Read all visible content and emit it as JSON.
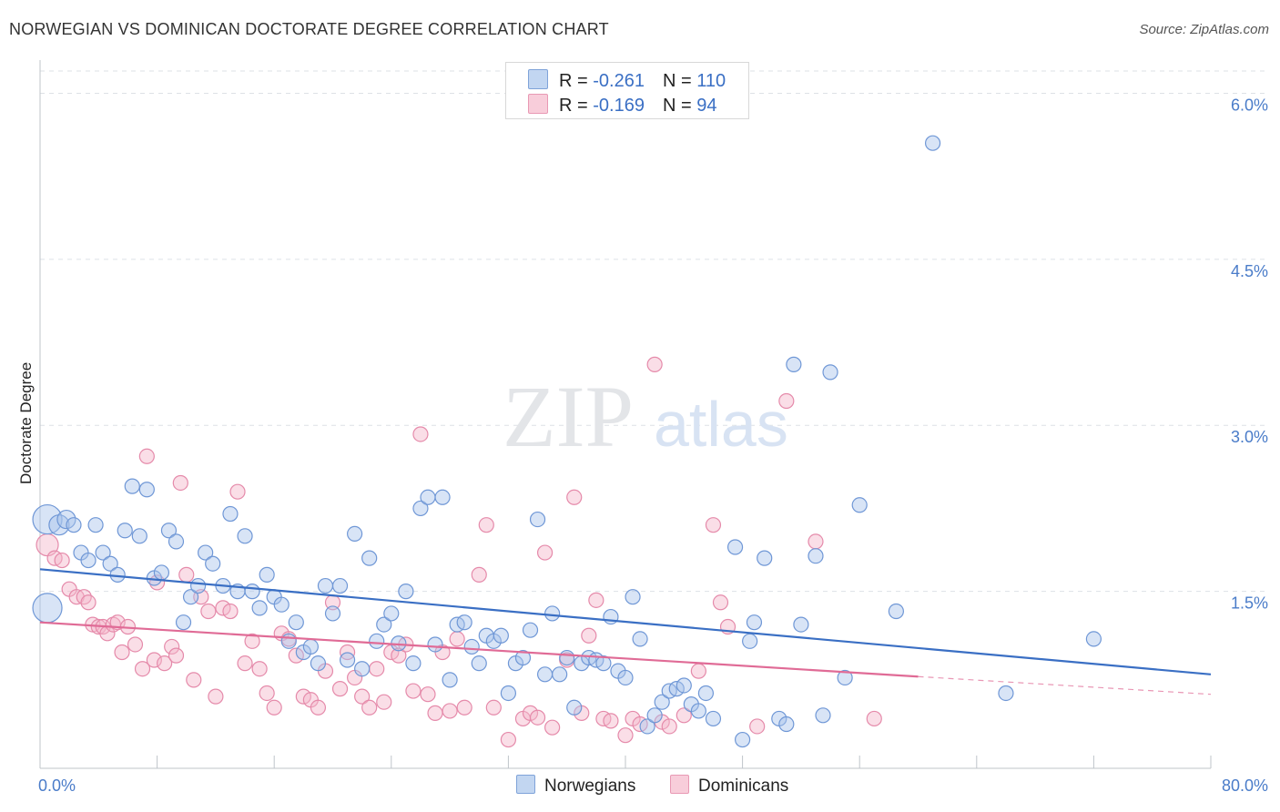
{
  "title": "NORWEGIAN VS DOMINICAN DOCTORATE DEGREE CORRELATION CHART",
  "source": "Source: ZipAtlas.com",
  "colors": {
    "blue": "#3a6fc4",
    "blue_fill": "#a9c4ec",
    "pink": "#e06b96",
    "pink_fill": "#f4b6ca",
    "grid": "#dde1e6",
    "tick_text": "#4a7cc9"
  },
  "legend": {
    "rows": [
      {
        "r_label": "R = ",
        "r_value": "-0.261",
        "n_label": "N = ",
        "n_value": "110"
      },
      {
        "r_label": "R = ",
        "r_value": "-0.169",
        "n_label": "N = ",
        "n_value": "94"
      }
    ]
  },
  "bottom_legend": [
    "Norwegians",
    "Dominicans"
  ],
  "chart_data": {
    "type": "scatter",
    "title": "NORWEGIAN VS DOMINICAN DOCTORATE DEGREE CORRELATION CHART",
    "xlabel": "",
    "ylabel": "Doctorate Degree",
    "xlim": [
      0,
      80
    ],
    "ylim": [
      0,
      6.3
    ],
    "x_tick_labels": [
      "0.0%",
      "80.0%"
    ],
    "y_ticks": [
      1.5,
      3.0,
      4.5,
      6.0
    ],
    "y_tick_labels": [
      "1.5%",
      "3.0%",
      "4.5%",
      "6.0%"
    ],
    "grid": true,
    "legend_position": "top-center",
    "series": [
      {
        "name": "Norwegians",
        "color": "#3a6fc4",
        "trend": {
          "x": [
            0,
            80
          ],
          "y": [
            1.7,
            0.75
          ]
        },
        "points": [
          [
            0.5,
            2.15
          ],
          [
            0.5,
            1.35
          ],
          [
            1.3,
            2.1
          ],
          [
            1.8,
            2.15
          ],
          [
            2.3,
            2.1
          ],
          [
            2.8,
            1.85
          ],
          [
            3.3,
            1.78
          ],
          [
            3.8,
            2.1
          ],
          [
            4.3,
            1.85
          ],
          [
            4.8,
            1.75
          ],
          [
            5.3,
            1.65
          ],
          [
            5.8,
            2.05
          ],
          [
            6.3,
            2.45
          ],
          [
            6.8,
            2.0
          ],
          [
            7.3,
            2.42
          ],
          [
            7.8,
            1.62
          ],
          [
            8.3,
            1.67
          ],
          [
            8.8,
            2.05
          ],
          [
            9.3,
            1.95
          ],
          [
            9.8,
            1.22
          ],
          [
            10.3,
            1.45
          ],
          [
            10.8,
            1.55
          ],
          [
            11.3,
            1.85
          ],
          [
            11.8,
            1.75
          ],
          [
            12.5,
            1.55
          ],
          [
            13.0,
            2.2
          ],
          [
            13.5,
            1.5
          ],
          [
            14.0,
            2.0
          ],
          [
            14.5,
            1.5
          ],
          [
            15.0,
            1.35
          ],
          [
            15.5,
            1.65
          ],
          [
            16.0,
            1.45
          ],
          [
            16.5,
            1.38
          ],
          [
            17.0,
            1.05
          ],
          [
            17.5,
            1.22
          ],
          [
            18.0,
            0.95
          ],
          [
            18.5,
            1.0
          ],
          [
            19.0,
            0.85
          ],
          [
            19.5,
            1.55
          ],
          [
            20.0,
            1.3
          ],
          [
            20.5,
            1.55
          ],
          [
            21.0,
            0.88
          ],
          [
            21.5,
            2.02
          ],
          [
            22.0,
            0.8
          ],
          [
            22.5,
            1.8
          ],
          [
            23.0,
            1.05
          ],
          [
            23.5,
            1.2
          ],
          [
            24.0,
            1.3
          ],
          [
            24.5,
            1.03
          ],
          [
            25.0,
            1.5
          ],
          [
            25.5,
            0.85
          ],
          [
            26.0,
            2.25
          ],
          [
            26.5,
            2.35
          ],
          [
            27.0,
            1.02
          ],
          [
            27.5,
            2.35
          ],
          [
            28.0,
            0.7
          ],
          [
            28.5,
            1.2
          ],
          [
            29.0,
            1.22
          ],
          [
            29.5,
            1.0
          ],
          [
            30.0,
            0.85
          ],
          [
            30.5,
            1.1
          ],
          [
            31.0,
            1.05
          ],
          [
            31.5,
            1.1
          ],
          [
            32.0,
            0.58
          ],
          [
            32.5,
            0.85
          ],
          [
            33.0,
            0.9
          ],
          [
            33.5,
            1.15
          ],
          [
            34.0,
            2.15
          ],
          [
            34.5,
            0.75
          ],
          [
            35.0,
            1.3
          ],
          [
            35.5,
            0.75
          ],
          [
            36.0,
            0.9
          ],
          [
            36.5,
            0.45
          ],
          [
            37.0,
            0.85
          ],
          [
            37.5,
            0.9
          ],
          [
            38.0,
            0.88
          ],
          [
            38.5,
            0.85
          ],
          [
            39.0,
            1.27
          ],
          [
            39.5,
            0.78
          ],
          [
            40.0,
            0.72
          ],
          [
            40.5,
            1.45
          ],
          [
            41.0,
            1.07
          ],
          [
            41.5,
            0.28
          ],
          [
            42.0,
            0.38
          ],
          [
            42.5,
            0.5
          ],
          [
            43.0,
            0.6
          ],
          [
            43.5,
            0.62
          ],
          [
            44.0,
            0.65
          ],
          [
            44.5,
            0.48
          ],
          [
            45.0,
            0.42
          ],
          [
            45.5,
            0.58
          ],
          [
            46.0,
            0.35
          ],
          [
            47.5,
            1.9
          ],
          [
            48.0,
            0.16
          ],
          [
            48.5,
            1.05
          ],
          [
            48.8,
            1.22
          ],
          [
            49.5,
            1.8
          ],
          [
            50.5,
            0.35
          ],
          [
            51.0,
            0.3
          ],
          [
            51.5,
            3.55
          ],
          [
            52.0,
            1.2
          ],
          [
            53.0,
            1.82
          ],
          [
            53.5,
            0.38
          ],
          [
            54.0,
            3.48
          ],
          [
            55.0,
            0.72
          ],
          [
            56.0,
            2.28
          ],
          [
            58.5,
            1.32
          ],
          [
            66.0,
            0.58
          ],
          [
            72.0,
            1.07
          ],
          [
            61.0,
            5.55
          ]
        ],
        "sizes": {
          "0": 28,
          "1": 28,
          "2": 18,
          "3": 16
        }
      },
      {
        "name": "Dominicans",
        "color": "#e06b96",
        "trend": {
          "x": [
            0,
            60
          ],
          "y": [
            1.22,
            0.73
          ]
        },
        "trend_dashed_to": {
          "x": 80,
          "y": 0.57
        },
        "points": [
          [
            0.5,
            1.92
          ],
          [
            1.0,
            1.8
          ],
          [
            1.5,
            1.78
          ],
          [
            2.0,
            1.52
          ],
          [
            2.5,
            1.45
          ],
          [
            3.0,
            1.45
          ],
          [
            3.3,
            1.4
          ],
          [
            3.6,
            1.2
          ],
          [
            4.0,
            1.18
          ],
          [
            4.3,
            1.18
          ],
          [
            4.6,
            1.12
          ],
          [
            5.0,
            1.2
          ],
          [
            5.3,
            1.22
          ],
          [
            5.6,
            0.95
          ],
          [
            6.0,
            1.18
          ],
          [
            6.5,
            1.02
          ],
          [
            7.0,
            0.8
          ],
          [
            7.3,
            2.72
          ],
          [
            7.8,
            0.88
          ],
          [
            8.0,
            1.58
          ],
          [
            8.5,
            0.85
          ],
          [
            9.0,
            1.0
          ],
          [
            9.3,
            0.92
          ],
          [
            9.6,
            2.48
          ],
          [
            10.0,
            1.65
          ],
          [
            10.5,
            0.7
          ],
          [
            11.0,
            1.45
          ],
          [
            11.5,
            1.32
          ],
          [
            12.0,
            0.55
          ],
          [
            12.5,
            1.35
          ],
          [
            13.0,
            1.32
          ],
          [
            13.5,
            2.4
          ],
          [
            14.0,
            0.85
          ],
          [
            14.5,
            1.05
          ],
          [
            15.0,
            0.8
          ],
          [
            15.5,
            0.58
          ],
          [
            16.0,
            0.45
          ],
          [
            16.5,
            1.12
          ],
          [
            17.0,
            1.07
          ],
          [
            17.5,
            0.92
          ],
          [
            18.0,
            0.55
          ],
          [
            18.5,
            0.52
          ],
          [
            19.0,
            0.45
          ],
          [
            19.5,
            0.78
          ],
          [
            20.0,
            1.4
          ],
          [
            20.5,
            0.62
          ],
          [
            21.0,
            0.95
          ],
          [
            21.5,
            0.72
          ],
          [
            22.0,
            0.55
          ],
          [
            22.5,
            0.45
          ],
          [
            23.0,
            0.8
          ],
          [
            23.5,
            0.5
          ],
          [
            24.0,
            0.95
          ],
          [
            24.5,
            0.92
          ],
          [
            25.0,
            1.02
          ],
          [
            25.5,
            0.6
          ],
          [
            26.0,
            2.92
          ],
          [
            26.5,
            0.57
          ],
          [
            27.0,
            0.4
          ],
          [
            27.5,
            0.95
          ],
          [
            28.0,
            0.42
          ],
          [
            28.5,
            1.07
          ],
          [
            29.0,
            0.45
          ],
          [
            30.0,
            1.65
          ],
          [
            30.5,
            2.1
          ],
          [
            31.0,
            0.45
          ],
          [
            32.0,
            0.16
          ],
          [
            33.0,
            0.35
          ],
          [
            33.5,
            0.4
          ],
          [
            34.0,
            0.36
          ],
          [
            34.5,
            1.85
          ],
          [
            35.0,
            0.27
          ],
          [
            36.0,
            0.88
          ],
          [
            36.5,
            2.35
          ],
          [
            37.0,
            0.4
          ],
          [
            37.5,
            1.1
          ],
          [
            38.0,
            1.42
          ],
          [
            38.5,
            0.35
          ],
          [
            39.0,
            0.33
          ],
          [
            40.0,
            0.2
          ],
          [
            40.5,
            0.35
          ],
          [
            41.0,
            0.3
          ],
          [
            42.0,
            3.55
          ],
          [
            42.5,
            0.32
          ],
          [
            43.0,
            0.28
          ],
          [
            44.0,
            0.38
          ],
          [
            45.0,
            0.78
          ],
          [
            46.0,
            2.1
          ],
          [
            46.5,
            1.4
          ],
          [
            47.0,
            1.18
          ],
          [
            49.0,
            0.28
          ],
          [
            51.0,
            3.22
          ],
          [
            53.0,
            1.95
          ],
          [
            57.0,
            0.35
          ]
        ],
        "sizes": {
          "0": 20
        }
      }
    ]
  },
  "watermark": {
    "zip": "ZIP",
    "atlas": "atlas"
  }
}
